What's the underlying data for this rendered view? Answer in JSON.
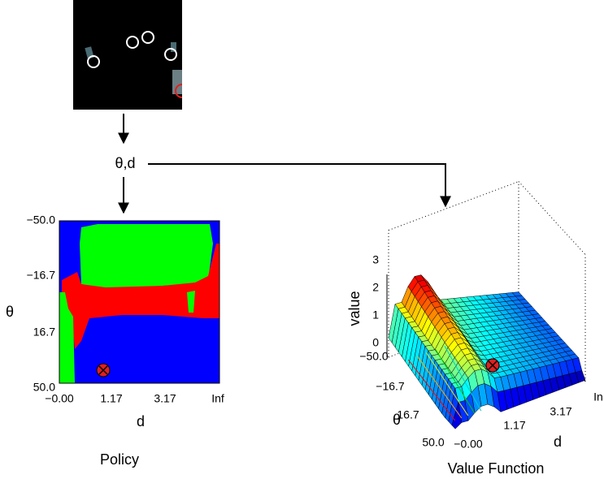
{
  "input_label": "θ,d",
  "policy": {
    "caption": "Policy",
    "x_label": "d",
    "y_label": "θ",
    "x_ticks": [
      "−0.00",
      "1.17",
      "3.17",
      "Inf"
    ],
    "y_ticks": [
      "−50.0",
      "−16.7",
      "16.7",
      "50.0"
    ]
  },
  "value_function": {
    "caption": "Value Function",
    "x_label": "d",
    "y_label": "θ",
    "z_label": "value",
    "z_ticks": [
      "0",
      "1",
      "2",
      "3"
    ],
    "y_ticks": [
      "−50.0",
      "−16.7",
      "16.7",
      "50.0"
    ],
    "x_ticks": [
      "−0.00",
      "1.17",
      "3.17",
      "In"
    ]
  }
}
